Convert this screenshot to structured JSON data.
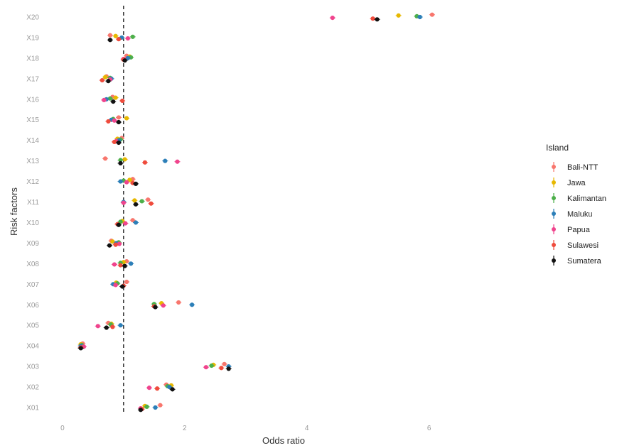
{
  "chart_data": {
    "type": "scatter",
    "title": "",
    "xlabel": "Odds ratio",
    "ylabel": "Risk factors",
    "xlim": [
      -0.15,
      6.4
    ],
    "xticks": [
      0,
      2,
      4,
      6
    ],
    "xtick_labels": [
      "0",
      "2",
      "4",
      "6"
    ],
    "reference_line_x": 1,
    "grid": false,
    "legend_position": "right",
    "categories": [
      "X01",
      "X02",
      "X03",
      "X04",
      "X05",
      "X06",
      "X07",
      "X08",
      "X09",
      "X10",
      "X11",
      "X12",
      "X13",
      "X14",
      "X15",
      "X16",
      "X17",
      "X18",
      "X19",
      "X20"
    ],
    "legend_title": "Island",
    "series": [
      {
        "name": "Bali-NTT",
        "color": "#F8766D",
        "values": [
          1.6,
          1.7,
          2.65,
          0.33,
          0.75,
          1.9,
          1.05,
          1.05,
          0.8,
          1.15,
          1.4,
          1.15,
          0.7,
          0.97,
          0.92,
          0.82,
          0.72,
          1.05,
          0.78,
          6.05
        ]
      },
      {
        "name": "Jawa",
        "color": "#E7B800",
        "values": [
          1.35,
          1.78,
          2.47,
          0.3,
          0.8,
          1.62,
          0.88,
          1.0,
          0.82,
          0.98,
          1.18,
          1.1,
          1.02,
          0.9,
          1.05,
          0.87,
          0.7,
          1.1,
          0.87,
          5.5
        ]
      },
      {
        "name": "Kalimantan",
        "color": "#4DAF4A",
        "values": [
          1.38,
          1.72,
          2.44,
          0.32,
          0.79,
          1.5,
          0.9,
          0.95,
          0.92,
          0.95,
          1.3,
          1.0,
          0.95,
          0.95,
          0.83,
          0.78,
          0.78,
          1.12,
          1.15,
          5.8
        ]
      },
      {
        "name": "Maluku",
        "color": "#2C7FB8",
        "values": [
          1.52,
          1.75,
          2.72,
          0.3,
          0.95,
          2.12,
          0.83,
          1.12,
          0.88,
          1.2,
          1.0,
          0.95,
          1.68,
          0.92,
          0.8,
          0.72,
          0.8,
          1.07,
          0.97,
          5.85
        ]
      },
      {
        "name": "Papua",
        "color": "#F0448D",
        "values": [
          1.28,
          1.42,
          2.35,
          0.35,
          0.58,
          1.65,
          0.87,
          0.85,
          0.93,
          1.03,
          1.0,
          1.05,
          1.88,
          0.88,
          0.85,
          0.68,
          0.78,
          1.0,
          1.07,
          4.42
        ]
      },
      {
        "name": "Sulawesi",
        "color": "#EF4B3C",
        "values": [
          1.3,
          1.55,
          2.6,
          0.3,
          0.82,
          1.5,
          1.0,
          0.95,
          0.87,
          0.9,
          1.45,
          1.15,
          1.35,
          0.85,
          0.75,
          0.98,
          0.65,
          1.0,
          0.92,
          5.08
        ]
      },
      {
        "name": "Sumatera",
        "color": "#111111",
        "values": [
          1.28,
          1.8,
          2.72,
          0.3,
          0.72,
          1.52,
          0.98,
          1.02,
          0.77,
          0.92,
          1.2,
          1.2,
          0.95,
          0.92,
          0.92,
          0.83,
          0.75,
          1.02,
          0.78,
          5.15
        ]
      }
    ]
  }
}
